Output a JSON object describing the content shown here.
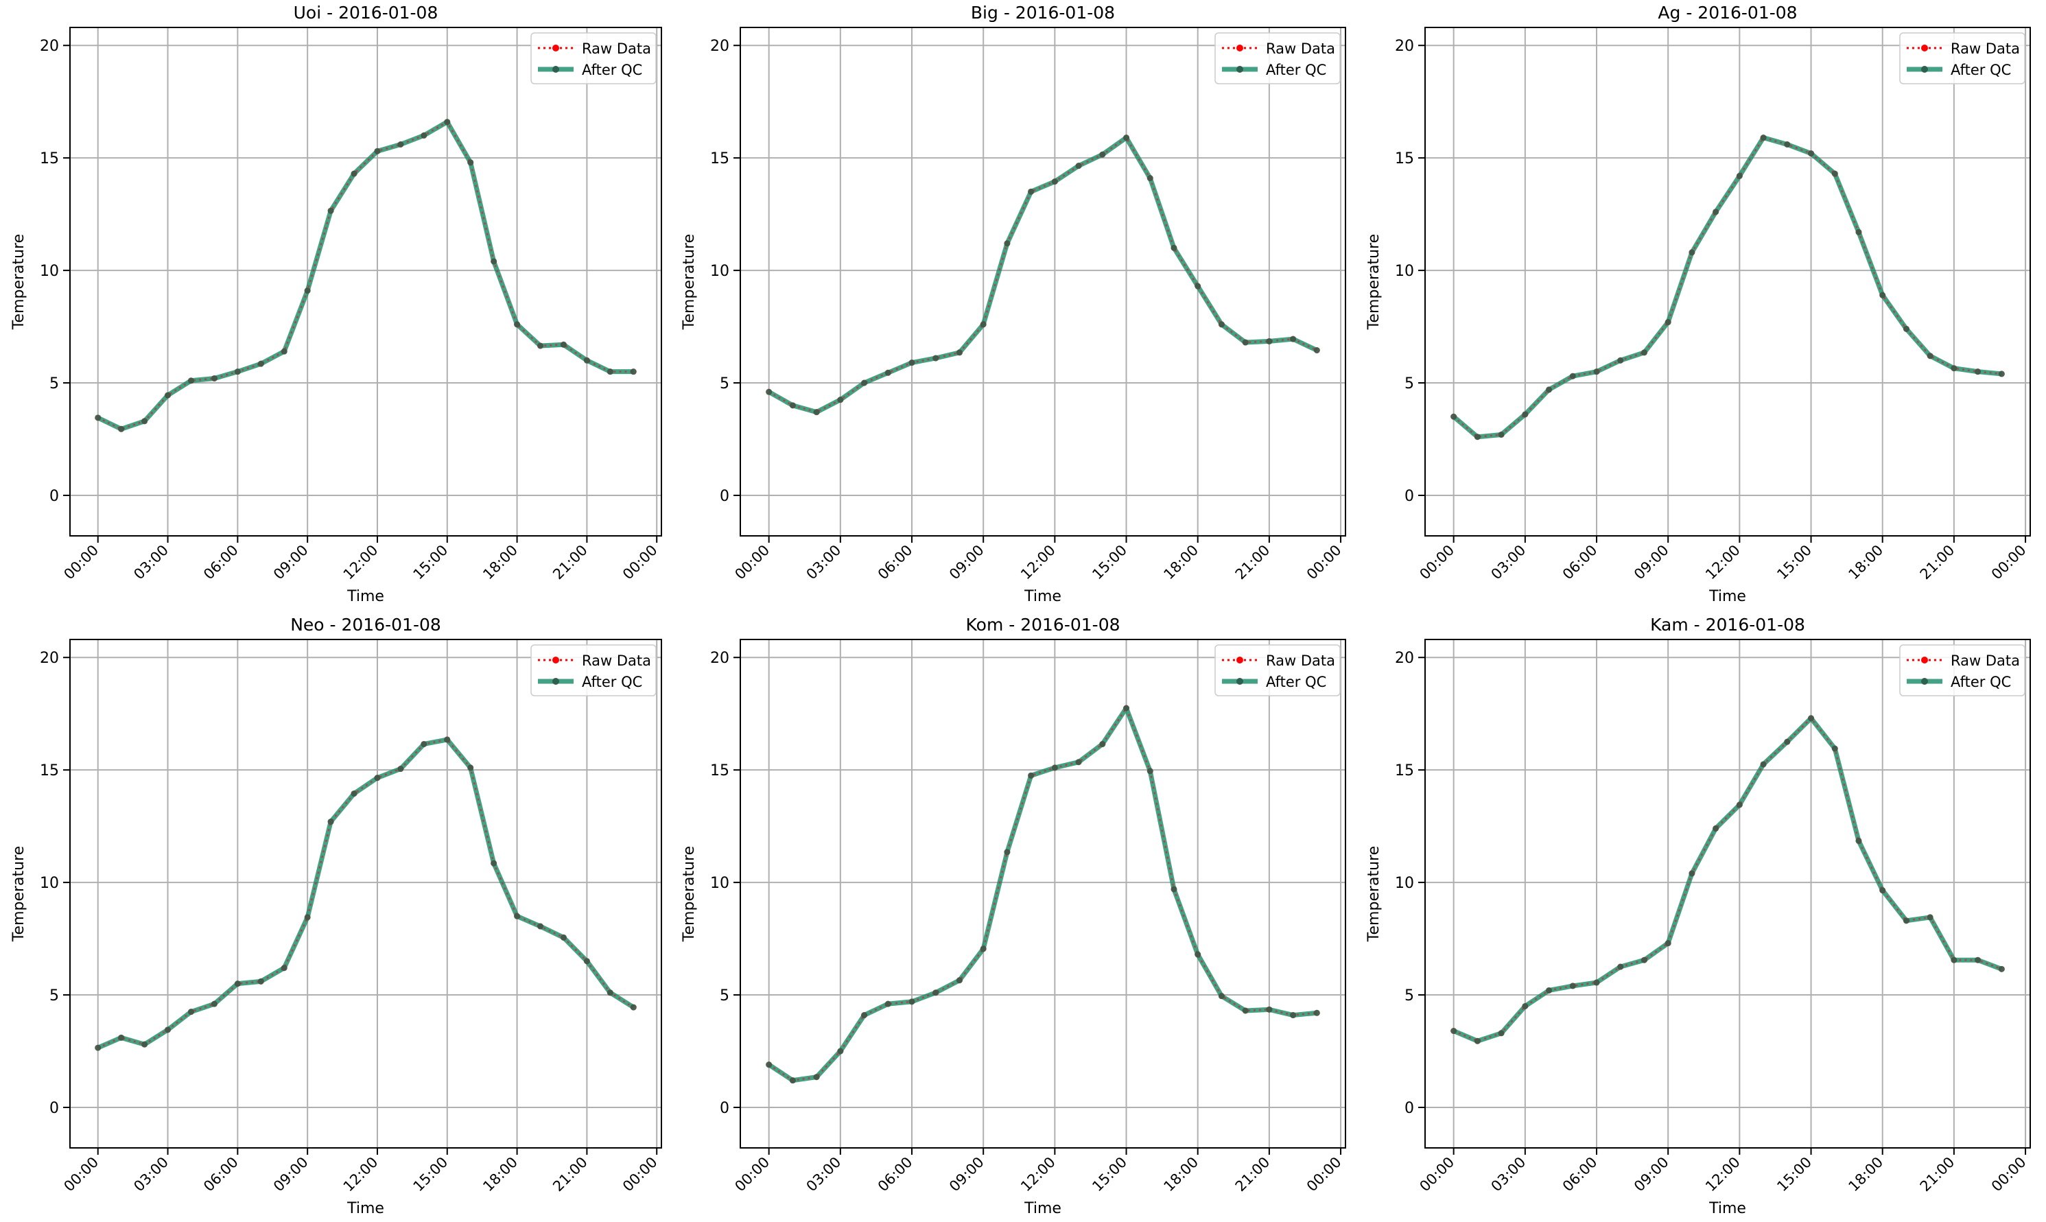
{
  "legend_labels": {
    "raw": "Raw Data",
    "qc": "After QC"
  },
  "colors": {
    "raw": "#ff0000",
    "qc": "#1a8c6a",
    "qc_marker": "#2f5f4f",
    "grid": "#b0b0b0",
    "axis": "#000000"
  },
  "axis_labels": {
    "xlabel": "Time",
    "ylabel": "Temperature"
  },
  "y_ticks": [
    0,
    5,
    10,
    15,
    20
  ],
  "x_ticks": [
    "00:00",
    "03:00",
    "06:00",
    "09:00",
    "12:00",
    "15:00",
    "18:00",
    "21:00",
    "00:00"
  ],
  "chart_data": [
    {
      "type": "line",
      "title": "Uoi - 2016-01-08",
      "x_hours": [
        0,
        1,
        2,
        3,
        4,
        5,
        6,
        7,
        8,
        9,
        10,
        11,
        12,
        13,
        14,
        15,
        16,
        17,
        18,
        19,
        20,
        21,
        22,
        23
      ],
      "xlim": [
        -1.2,
        24.2
      ],
      "ylim": [
        -1.8,
        20.8
      ],
      "legend_position": "upper right",
      "grid": true,
      "series": [
        {
          "name": "Raw Data",
          "values": [
            3.45,
            2.95,
            3.3,
            4.45,
            5.1,
            5.2,
            5.5,
            5.85,
            6.4,
            9.1,
            12.65,
            14.3,
            15.3,
            15.6,
            16.0,
            16.6,
            14.8,
            10.4,
            7.6,
            6.65,
            6.7,
            6.0,
            5.5,
            5.5
          ]
        },
        {
          "name": "After QC",
          "values": [
            3.45,
            2.95,
            3.3,
            4.45,
            5.1,
            5.2,
            5.5,
            5.85,
            6.4,
            9.1,
            12.65,
            14.3,
            15.3,
            15.6,
            16.0,
            16.6,
            14.8,
            10.4,
            7.6,
            6.65,
            6.7,
            6.0,
            5.5,
            5.5
          ]
        }
      ]
    },
    {
      "type": "line",
      "title": "Big - 2016-01-08",
      "x_hours": [
        0,
        1,
        2,
        3,
        4,
        5,
        6,
        7,
        8,
        9,
        10,
        11,
        12,
        13,
        14,
        15,
        16,
        17,
        18,
        19,
        20,
        21,
        22,
        23
      ],
      "xlim": [
        -1.2,
        24.2
      ],
      "ylim": [
        -1.8,
        20.8
      ],
      "legend_position": "upper right",
      "grid": true,
      "series": [
        {
          "name": "Raw Data",
          "values": [
            4.6,
            4.0,
            3.7,
            4.25,
            5.0,
            5.45,
            5.9,
            6.1,
            6.35,
            7.6,
            11.2,
            13.5,
            13.95,
            14.65,
            15.15,
            15.9,
            14.1,
            11.0,
            9.3,
            7.6,
            6.8,
            6.85,
            6.95,
            6.45
          ]
        },
        {
          "name": "After QC",
          "values": [
            4.6,
            4.0,
            3.7,
            4.25,
            5.0,
            5.45,
            5.9,
            6.1,
            6.35,
            7.6,
            11.2,
            13.5,
            13.95,
            14.65,
            15.15,
            15.9,
            14.1,
            11.0,
            9.3,
            7.6,
            6.8,
            6.85,
            6.95,
            6.45
          ]
        }
      ]
    },
    {
      "type": "line",
      "title": "Ag - 2016-01-08",
      "x_hours": [
        0,
        1,
        2,
        3,
        4,
        5,
        6,
        7,
        8,
        9,
        10,
        11,
        12,
        13,
        14,
        15,
        16,
        17,
        18,
        19,
        20,
        21,
        22,
        23
      ],
      "xlim": [
        -1.2,
        24.2
      ],
      "ylim": [
        -1.8,
        20.8
      ],
      "legend_position": "upper right",
      "grid": true,
      "series": [
        {
          "name": "Raw Data",
          "values": [
            3.5,
            2.6,
            2.7,
            3.6,
            4.7,
            5.3,
            5.5,
            6.0,
            6.35,
            7.7,
            10.8,
            12.6,
            14.2,
            15.9,
            15.6,
            15.2,
            14.3,
            11.7,
            8.9,
            7.4,
            6.2,
            5.65,
            5.5,
            5.4
          ]
        },
        {
          "name": "After QC",
          "values": [
            3.5,
            2.6,
            2.7,
            3.6,
            4.7,
            5.3,
            5.5,
            6.0,
            6.35,
            7.7,
            10.8,
            12.6,
            14.2,
            15.9,
            15.6,
            15.2,
            14.3,
            11.7,
            8.9,
            7.4,
            6.2,
            5.65,
            5.5,
            5.4
          ]
        }
      ]
    },
    {
      "type": "line",
      "title": "Neo - 2016-01-08",
      "x_hours": [
        0,
        1,
        2,
        3,
        4,
        5,
        6,
        7,
        8,
        9,
        10,
        11,
        12,
        13,
        14,
        15,
        16,
        17,
        18,
        19,
        20,
        21,
        22,
        23
      ],
      "xlim": [
        -1.2,
        24.2
      ],
      "ylim": [
        -1.8,
        20.8
      ],
      "legend_position": "upper right",
      "grid": true,
      "series": [
        {
          "name": "Raw Data",
          "values": [
            2.65,
            3.1,
            2.8,
            3.45,
            4.25,
            4.6,
            5.5,
            5.6,
            6.2,
            8.45,
            12.7,
            13.95,
            14.65,
            15.05,
            16.15,
            16.35,
            15.1,
            10.85,
            8.5,
            8.05,
            7.55,
            6.5,
            5.1,
            4.45
          ]
        },
        {
          "name": "After QC",
          "values": [
            2.65,
            3.1,
            2.8,
            3.45,
            4.25,
            4.6,
            5.5,
            5.6,
            6.2,
            8.45,
            12.7,
            13.95,
            14.65,
            15.05,
            16.15,
            16.35,
            15.1,
            10.85,
            8.5,
            8.05,
            7.55,
            6.5,
            5.1,
            4.45
          ]
        }
      ]
    },
    {
      "type": "line",
      "title": "Kom - 2016-01-08",
      "x_hours": [
        0,
        1,
        2,
        3,
        4,
        5,
        6,
        7,
        8,
        9,
        10,
        11,
        12,
        13,
        14,
        15,
        16,
        17,
        18,
        19,
        20,
        21,
        22,
        23
      ],
      "xlim": [
        -1.2,
        24.2
      ],
      "ylim": [
        -1.8,
        20.8
      ],
      "legend_position": "upper right",
      "grid": true,
      "series": [
        {
          "name": "Raw Data",
          "values": [
            1.9,
            1.2,
            1.35,
            2.5,
            4.1,
            4.6,
            4.7,
            5.1,
            5.65,
            7.05,
            11.35,
            14.75,
            15.1,
            15.35,
            16.15,
            17.75,
            14.95,
            9.7,
            6.8,
            4.95,
            4.3,
            4.35,
            4.1,
            4.2
          ]
        },
        {
          "name": "After QC",
          "values": [
            1.9,
            1.2,
            1.35,
            2.5,
            4.1,
            4.6,
            4.7,
            5.1,
            5.65,
            7.05,
            11.35,
            14.75,
            15.1,
            15.35,
            16.15,
            17.75,
            14.95,
            9.7,
            6.8,
            4.95,
            4.3,
            4.35,
            4.1,
            4.2
          ]
        }
      ]
    },
    {
      "type": "line",
      "title": "Kam - 2016-01-08",
      "x_hours": [
        0,
        1,
        2,
        3,
        4,
        5,
        6,
        7,
        8,
        9,
        10,
        11,
        12,
        13,
        14,
        15,
        16,
        17,
        18,
        19,
        20,
        21,
        22,
        23
      ],
      "xlim": [
        -1.2,
        24.2
      ],
      "ylim": [
        -1.8,
        20.8
      ],
      "legend_position": "upper right",
      "grid": true,
      "series": [
        {
          "name": "Raw Data",
          "values": [
            3.4,
            2.95,
            3.3,
            4.5,
            5.2,
            5.4,
            5.55,
            6.25,
            6.55,
            7.3,
            10.4,
            12.4,
            13.45,
            15.25,
            16.25,
            17.3,
            15.95,
            11.85,
            9.65,
            8.3,
            8.45,
            6.55,
            6.55,
            6.15
          ]
        },
        {
          "name": "After QC",
          "values": [
            3.4,
            2.95,
            3.3,
            4.5,
            5.2,
            5.4,
            5.55,
            6.25,
            6.55,
            7.3,
            10.4,
            12.4,
            13.45,
            15.25,
            16.25,
            17.3,
            15.95,
            11.85,
            9.65,
            8.3,
            8.45,
            6.55,
            6.55,
            6.15
          ]
        }
      ]
    }
  ]
}
